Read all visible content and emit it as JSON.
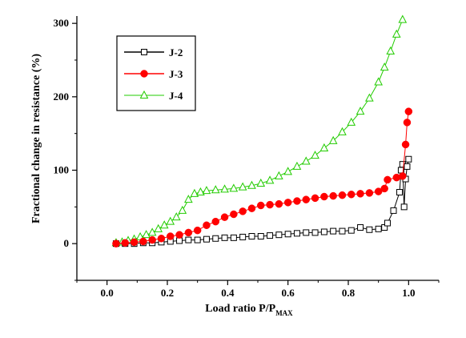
{
  "chart_data": {
    "type": "line",
    "xlabel": "Load ratio P/P",
    "xlabel_sub": "MAX",
    "ylabel": "Fractional change in resistance (%)",
    "xlim": [
      -0.1,
      1.1
    ],
    "ylim": [
      -50,
      310
    ],
    "xticks": [
      0.0,
      0.2,
      0.4,
      0.6,
      0.8,
      1.0
    ],
    "xtick_labels": [
      "0.0",
      "0.2",
      "0.4",
      "0.6",
      "0.8",
      "1.0"
    ],
    "yticks": [
      0,
      100,
      200,
      300
    ],
    "ytick_labels": [
      "0",
      "100",
      "200",
      "300"
    ],
    "legend_position": "top-left",
    "grid": false,
    "series": [
      {
        "name": "J-2",
        "color": "#000000",
        "marker": "open-square",
        "points": [
          [
            0.03,
            0
          ],
          [
            0.06,
            0
          ],
          [
            0.09,
            0
          ],
          [
            0.12,
            1
          ],
          [
            0.15,
            1
          ],
          [
            0.18,
            2
          ],
          [
            0.21,
            3
          ],
          [
            0.24,
            4
          ],
          [
            0.27,
            5
          ],
          [
            0.3,
            5
          ],
          [
            0.33,
            6
          ],
          [
            0.36,
            7
          ],
          [
            0.39,
            8
          ],
          [
            0.42,
            8
          ],
          [
            0.45,
            9
          ],
          [
            0.48,
            10
          ],
          [
            0.51,
            10
          ],
          [
            0.54,
            11
          ],
          [
            0.57,
            12
          ],
          [
            0.6,
            13
          ],
          [
            0.63,
            14
          ],
          [
            0.66,
            15
          ],
          [
            0.69,
            15
          ],
          [
            0.72,
            16
          ],
          [
            0.75,
            17
          ],
          [
            0.78,
            17
          ],
          [
            0.81,
            18
          ],
          [
            0.84,
            22
          ],
          [
            0.87,
            19
          ],
          [
            0.9,
            20
          ],
          [
            0.92,
            22
          ],
          [
            0.93,
            28
          ],
          [
            0.95,
            45
          ],
          [
            0.97,
            70
          ],
          [
            0.975,
            100
          ],
          [
            0.98,
            108
          ],
          [
            0.985,
            50
          ],
          [
            0.99,
            88
          ],
          [
            0.995,
            105
          ],
          [
            1.0,
            115
          ]
        ]
      },
      {
        "name": "J-3",
        "color": "#ff0000",
        "marker": "filled-circle",
        "points": [
          [
            0.03,
            0
          ],
          [
            0.06,
            1
          ],
          [
            0.09,
            2
          ],
          [
            0.12,
            3
          ],
          [
            0.15,
            5
          ],
          [
            0.18,
            7
          ],
          [
            0.21,
            10
          ],
          [
            0.24,
            12
          ],
          [
            0.27,
            15
          ],
          [
            0.3,
            18
          ],
          [
            0.33,
            25
          ],
          [
            0.36,
            30
          ],
          [
            0.39,
            36
          ],
          [
            0.42,
            40
          ],
          [
            0.45,
            44
          ],
          [
            0.48,
            48
          ],
          [
            0.51,
            52
          ],
          [
            0.54,
            53
          ],
          [
            0.57,
            54
          ],
          [
            0.6,
            56
          ],
          [
            0.63,
            58
          ],
          [
            0.66,
            60
          ],
          [
            0.69,
            62
          ],
          [
            0.72,
            64
          ],
          [
            0.75,
            65
          ],
          [
            0.78,
            66
          ],
          [
            0.81,
            67
          ],
          [
            0.84,
            68
          ],
          [
            0.87,
            69
          ],
          [
            0.9,
            71
          ],
          [
            0.92,
            75
          ],
          [
            0.93,
            87
          ],
          [
            0.96,
            90
          ],
          [
            0.98,
            92
          ],
          [
            0.99,
            135
          ],
          [
            0.995,
            165
          ],
          [
            1.0,
            180
          ]
        ]
      },
      {
        "name": "J-4",
        "color": "#22cc00",
        "marker": "open-triangle",
        "points": [
          [
            0.03,
            1
          ],
          [
            0.05,
            2
          ],
          [
            0.07,
            4
          ],
          [
            0.09,
            6
          ],
          [
            0.11,
            9
          ],
          [
            0.13,
            12
          ],
          [
            0.15,
            15
          ],
          [
            0.17,
            20
          ],
          [
            0.19,
            25
          ],
          [
            0.21,
            30
          ],
          [
            0.23,
            36
          ],
          [
            0.25,
            45
          ],
          [
            0.27,
            60
          ],
          [
            0.29,
            68
          ],
          [
            0.31,
            70
          ],
          [
            0.33,
            72
          ],
          [
            0.36,
            73
          ],
          [
            0.39,
            74
          ],
          [
            0.42,
            75
          ],
          [
            0.45,
            77
          ],
          [
            0.48,
            79
          ],
          [
            0.51,
            82
          ],
          [
            0.54,
            86
          ],
          [
            0.57,
            92
          ],
          [
            0.6,
            98
          ],
          [
            0.63,
            105
          ],
          [
            0.66,
            112
          ],
          [
            0.69,
            120
          ],
          [
            0.72,
            130
          ],
          [
            0.75,
            140
          ],
          [
            0.78,
            152
          ],
          [
            0.81,
            165
          ],
          [
            0.84,
            180
          ],
          [
            0.87,
            198
          ],
          [
            0.9,
            220
          ],
          [
            0.92,
            240
          ],
          [
            0.94,
            262
          ],
          [
            0.96,
            285
          ],
          [
            0.98,
            305
          ]
        ]
      }
    ]
  }
}
